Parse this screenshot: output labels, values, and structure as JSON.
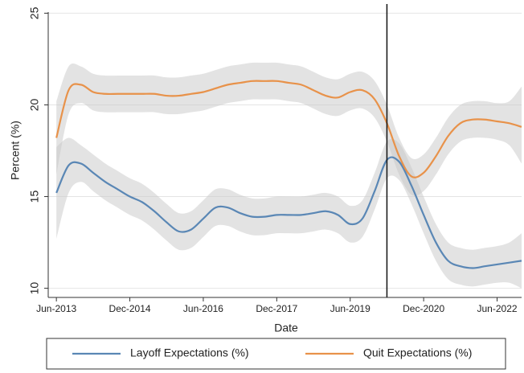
{
  "chart_data": {
    "type": "line",
    "x_label": "Date",
    "y_label": "Percent (%)",
    "x": [
      "Jun-2013",
      "Sep-2013",
      "Dec-2013",
      "Mar-2014",
      "Jun-2014",
      "Sep-2014",
      "Dec-2014",
      "Mar-2015",
      "Jun-2015",
      "Sep-2015",
      "Dec-2015",
      "Mar-2016",
      "Jun-2016",
      "Sep-2016",
      "Dec-2016",
      "Mar-2017",
      "Jun-2017",
      "Sep-2017",
      "Dec-2017",
      "Mar-2018",
      "Jun-2018",
      "Sep-2018",
      "Dec-2018",
      "Mar-2019",
      "Jun-2019",
      "Sep-2019",
      "Dec-2019",
      "Mar-2020",
      "Jun-2020",
      "Sep-2020",
      "Dec-2020",
      "Mar-2021",
      "Jun-2021",
      "Sep-2021",
      "Dec-2021",
      "Mar-2022",
      "Jun-2022",
      "Sep-2022",
      "Dec-2022"
    ],
    "series": [
      {
        "name": "Layoff Expectations (%)",
        "color": "#5a87b5",
        "values": [
          15.2,
          16.7,
          16.8,
          16.3,
          15.8,
          15.4,
          15.0,
          14.7,
          14.2,
          13.6,
          13.1,
          13.2,
          13.8,
          14.4,
          14.4,
          14.1,
          13.9,
          13.9,
          14.0,
          14.0,
          14.0,
          14.1,
          14.2,
          14.0,
          13.5,
          13.8,
          15.3,
          17.0,
          16.9,
          15.6,
          14.0,
          12.5,
          11.5,
          11.2,
          11.1,
          11.2,
          11.3,
          11.4,
          11.5
        ],
        "lower": [
          12.7,
          15.2,
          15.8,
          15.3,
          14.8,
          14.4,
          14.0,
          13.7,
          13.2,
          12.6,
          12.1,
          12.2,
          12.8,
          13.4,
          13.4,
          13.1,
          12.9,
          12.9,
          13.0,
          13.0,
          13.0,
          13.1,
          13.2,
          13.0,
          12.5,
          12.8,
          14.3,
          16.0,
          15.9,
          14.6,
          13.0,
          11.5,
          10.5,
          10.2,
          10.1,
          10.2,
          10.3,
          10.3,
          10.0
        ],
        "upper": [
          17.7,
          18.2,
          17.8,
          17.3,
          16.8,
          16.4,
          16.0,
          15.7,
          15.2,
          14.6,
          14.1,
          14.2,
          14.8,
          15.4,
          15.4,
          15.1,
          14.9,
          14.9,
          15.0,
          15.0,
          15.0,
          15.1,
          15.2,
          15.0,
          14.5,
          14.8,
          16.3,
          18.0,
          17.9,
          16.6,
          15.0,
          13.5,
          12.5,
          12.2,
          12.1,
          12.2,
          12.3,
          12.5,
          13.0
        ]
      },
      {
        "name": "Quit Expectations (%)",
        "color": "#e8924a",
        "values": [
          18.2,
          20.8,
          21.1,
          20.7,
          20.6,
          20.6,
          20.6,
          20.6,
          20.6,
          20.5,
          20.5,
          20.6,
          20.7,
          20.9,
          21.1,
          21.2,
          21.3,
          21.3,
          21.3,
          21.2,
          21.1,
          20.8,
          20.5,
          20.4,
          20.7,
          20.8,
          20.3,
          19.0,
          17.2,
          16.1,
          16.3,
          17.2,
          18.3,
          19.0,
          19.2,
          19.2,
          19.1,
          19.0,
          18.8
        ],
        "lower": [
          16.2,
          19.5,
          20.1,
          19.7,
          19.6,
          19.6,
          19.6,
          19.6,
          19.6,
          19.5,
          19.5,
          19.6,
          19.7,
          19.9,
          20.1,
          20.2,
          20.3,
          20.3,
          20.3,
          20.2,
          20.1,
          19.8,
          19.5,
          19.4,
          19.7,
          19.8,
          19.3,
          18.0,
          16.2,
          15.1,
          15.3,
          16.2,
          17.3,
          18.0,
          18.2,
          18.2,
          18.1,
          17.8,
          16.8
        ],
        "upper": [
          20.2,
          22.1,
          22.1,
          21.7,
          21.6,
          21.6,
          21.6,
          21.6,
          21.6,
          21.5,
          21.5,
          21.6,
          21.7,
          21.9,
          22.1,
          22.2,
          22.3,
          22.3,
          22.3,
          22.2,
          22.1,
          21.8,
          21.5,
          21.4,
          21.7,
          21.8,
          21.3,
          20.0,
          18.2,
          17.1,
          17.3,
          18.2,
          19.3,
          20.0,
          20.2,
          20.2,
          20.1,
          20.2,
          21.0
        ]
      }
    ],
    "xlim": [
      "Apr-2013",
      "Dec-2022"
    ],
    "xticks": [
      "Jun-2013",
      "Dec-2014",
      "Jun-2016",
      "Dec-2017",
      "Jun-2019",
      "Dec-2020",
      "Jun-2022"
    ],
    "ylim": [
      9.5,
      25.5
    ],
    "yticks": [
      10,
      15,
      20,
      25
    ],
    "grid": true,
    "event_line": "Mar-2020"
  }
}
